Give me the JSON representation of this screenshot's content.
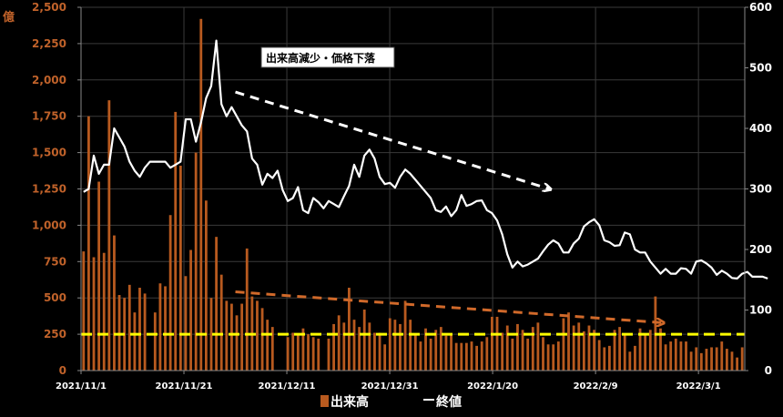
{
  "chart_data": {
    "type": "bar+line",
    "left_axis": {
      "unit_label": "億",
      "ylim": [
        0,
        2500
      ],
      "ticks": [
        "0",
        "250",
        "500",
        "750",
        "1,000",
        "1,250",
        "1,500",
        "1,750",
        "2,000",
        "2,250",
        "2,500"
      ],
      "color": "#c0622a"
    },
    "right_axis": {
      "ylim": [
        0,
        600
      ],
      "ticks": [
        "0",
        "100",
        "200",
        "300",
        "400",
        "500",
        "600"
      ],
      "color": "#ffffff"
    },
    "x_tick_labels": [
      "2021/11/1",
      "2021/11/21",
      "2021/12/11",
      "2021/12/31",
      "2022/1/20",
      "2022/2/9",
      "2022/3/1"
    ],
    "reference_line": {
      "value": 250,
      "axis": "left",
      "color": "#ffff00"
    },
    "annotation": "出来高減少・価格下落",
    "legend": [
      {
        "name": "出来高",
        "color": "#b85a1f"
      },
      {
        "name": "終値",
        "color": "#ffffff"
      }
    ],
    "series": [
      {
        "name": "出来高",
        "axis": "left",
        "color": "#b85a1f",
        "values": [
          820,
          1750,
          780,
          1300,
          810,
          1860,
          930,
          520,
          500,
          590,
          400,
          570,
          530,
          0,
          400,
          600,
          580,
          1070,
          1780,
          1410,
          650,
          830,
          1500,
          2420,
          1170,
          500,
          920,
          660,
          480,
          460,
          380,
          460,
          840,
          510,
          480,
          430,
          350,
          300,
          0,
          0,
          230,
          260,
          250,
          290,
          250,
          230,
          220,
          0,
          220,
          320,
          380,
          330,
          570,
          350,
          300,
          420,
          330,
          260,
          260,
          180,
          360,
          350,
          320,
          480,
          350,
          250,
          200,
          290,
          220,
          280,
          300,
          240,
          250,
          190,
          190,
          190,
          200,
          170,
          200,
          230,
          370,
          370,
          260,
          310,
          220,
          320,
          280,
          220,
          300,
          330,
          230,
          180,
          180,
          200,
          360,
          400,
          310,
          330,
          270,
          310,
          280,
          210,
          160,
          170,
          280,
          300,
          250,
          130,
          170,
          290,
          250,
          280,
          510,
          290,
          180,
          200,
          220,
          200,
          200,
          130,
          160,
          120,
          150,
          160,
          160,
          200,
          150,
          130,
          90,
          160
        ]
      },
      {
        "name": "終値",
        "axis": "right",
        "color": "#ffffff",
        "values": [
          295,
          300,
          355,
          325,
          340,
          340,
          400,
          385,
          370,
          345,
          330,
          320,
          335,
          345,
          345,
          345,
          345,
          335,
          340,
          345,
          415,
          415,
          378,
          410,
          450,
          470,
          545,
          440,
          420,
          435,
          420,
          405,
          395,
          350,
          340,
          307,
          325,
          318,
          330,
          298,
          280,
          285,
          303,
          265,
          260,
          285,
          278,
          268,
          280,
          275,
          270,
          288,
          305,
          340,
          320,
          355,
          365,
          350,
          320,
          308,
          310,
          302,
          320,
          332,
          325,
          315,
          305,
          295,
          285,
          265,
          262,
          271,
          255,
          265,
          290,
          272,
          275,
          280,
          281,
          265,
          260,
          248,
          225,
          192,
          170,
          180,
          172,
          175,
          180,
          185,
          197,
          208,
          215,
          210,
          195,
          195,
          210,
          218,
          238,
          245,
          250,
          240,
          215,
          212,
          206,
          207,
          228,
          225,
          200,
          195,
          195,
          180,
          170,
          160,
          168,
          160,
          160,
          169,
          168,
          160,
          180,
          182,
          177,
          170,
          158,
          165,
          160,
          153,
          152,
          160,
          163,
          155,
          155,
          155,
          152
        ]
      }
    ],
    "trend_arrows": [
      {
        "color": "#ffffff",
        "from": [
          "2021/12/1",
          460
        ],
        "to": [
          "2022/1/31",
          300
        ]
      },
      {
        "color": "#d0692a",
        "from": [
          "2021/12/1",
          130
        ],
        "to": [
          "2022/2/22",
          79
        ]
      }
    ]
  }
}
